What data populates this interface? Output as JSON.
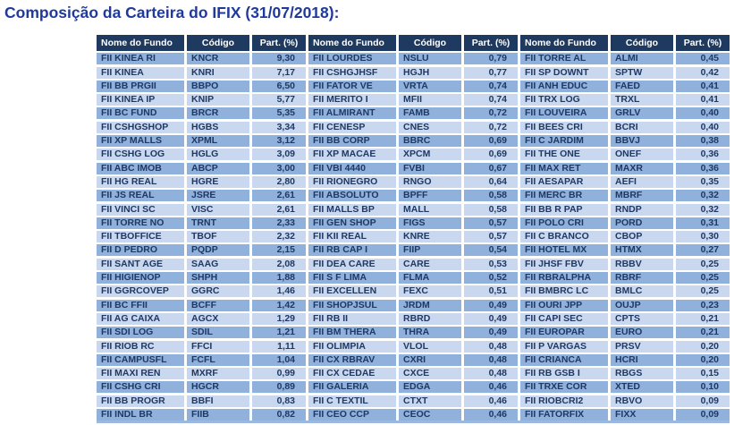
{
  "title": "Composição da Carteira do IFIX (31/07/2018):",
  "colors": {
    "title": "#1F3A9B",
    "header_bg": "#1F3A60",
    "row_dark": "#8FB1DC",
    "row_light": "#C9D8EE",
    "cell_text": "#1F3864"
  },
  "table": {
    "headers": [
      "Nome do Fundo",
      "Código",
      "Part. (%)"
    ],
    "groups": [
      {
        "rows": [
          [
            "FII KINEA RI",
            "KNCR",
            "9,30"
          ],
          [
            "FII KINEA",
            "KNRI",
            "7,17"
          ],
          [
            "FII BB PRGII",
            "BBPO",
            "6,50"
          ],
          [
            "FII KINEA IP",
            "KNIP",
            "5,77"
          ],
          [
            "FII BC FUND",
            "BRCR",
            "5,35"
          ],
          [
            "FII CSHGSHOP",
            "HGBS",
            "3,34"
          ],
          [
            "FII XP MALLS",
            "XPML",
            "3,12"
          ],
          [
            "FII CSHG LOG",
            "HGLG",
            "3,09"
          ],
          [
            "FII ABC IMOB",
            "ABCP",
            "3,00"
          ],
          [
            "FII HG REAL",
            "HGRE",
            "2,80"
          ],
          [
            "FII JS REAL",
            "JSRE",
            "2,61"
          ],
          [
            "FII VINCI SC",
            "VISC",
            "2,61"
          ],
          [
            "FII TORRE NO",
            "TRNT",
            "2,33"
          ],
          [
            "FII TBOFFICE",
            "TBOF",
            "2,32"
          ],
          [
            "FII D PEDRO",
            "PQDP",
            "2,15"
          ],
          [
            "FII SANT AGE",
            "SAAG",
            "2,08"
          ],
          [
            "FII HIGIENOP",
            "SHPH",
            "1,88"
          ],
          [
            "FII GGRCOVEP",
            "GGRC",
            "1,46"
          ],
          [
            "FII BC FFII",
            "BCFF",
            "1,42"
          ],
          [
            "FII AG CAIXA",
            "AGCX",
            "1,29"
          ],
          [
            "FII SDI LOG",
            "SDIL",
            "1,21"
          ],
          [
            "FII RIOB RC",
            "FFCI",
            "1,11"
          ],
          [
            "FII CAMPUSFL",
            "FCFL",
            "1,04"
          ],
          [
            "FII MAXI REN",
            "MXRF",
            "0,99"
          ],
          [
            "FII CSHG CRI",
            "HGCR",
            "0,89"
          ],
          [
            "FII BB PROGR",
            "BBFI",
            "0,83"
          ],
          [
            "FII INDL BR",
            "FIIB",
            "0,82"
          ]
        ]
      },
      {
        "rows": [
          [
            "FII LOURDES",
            "NSLU",
            "0,79"
          ],
          [
            "FII CSHGJHSF",
            "HGJH",
            "0,77"
          ],
          [
            "FII FATOR VE",
            "VRTA",
            "0,74"
          ],
          [
            "FII MERITO I",
            "MFII",
            "0,74"
          ],
          [
            "FII ALMIRANT",
            "FAMB",
            "0,72"
          ],
          [
            "FII CENESP",
            "CNES",
            "0,72"
          ],
          [
            "FII BB CORP",
            "BBRC",
            "0,69"
          ],
          [
            "FII XP MACAE",
            "XPCM",
            "0,69"
          ],
          [
            "FII VBI 4440",
            "FVBI",
            "0,67"
          ],
          [
            "FII RIONEGRO",
            "RNGO",
            "0,64"
          ],
          [
            "FII ABSOLUTO",
            "BPFF",
            "0,58"
          ],
          [
            "FII MALLS BP",
            "MALL",
            "0,58"
          ],
          [
            "FII GEN SHOP",
            "FIGS",
            "0,57"
          ],
          [
            "FII KII REAL",
            "KNRE",
            "0,57"
          ],
          [
            "FII RB CAP I",
            "FIIP",
            "0,54"
          ],
          [
            "FII DEA CARE",
            "CARE",
            "0,53"
          ],
          [
            "FII S F LIMA",
            "FLMA",
            "0,52"
          ],
          [
            "FII EXCELLEN",
            "FEXC",
            "0,51"
          ],
          [
            "FII SHOPJSUL",
            "JRDM",
            "0,49"
          ],
          [
            "FII RB II",
            "RBRD",
            "0,49"
          ],
          [
            "FII BM THERA",
            "THRA",
            "0,49"
          ],
          [
            "FII OLIMPIA",
            "VLOL",
            "0,48"
          ],
          [
            "FII CX RBRAV",
            "CXRI",
            "0,48"
          ],
          [
            "FII CX CEDAE",
            "CXCE",
            "0,48"
          ],
          [
            "FII GALERIA",
            "EDGA",
            "0,46"
          ],
          [
            "FII C TEXTIL",
            "CTXT",
            "0,46"
          ],
          [
            "FII CEO CCP",
            "CEOC",
            "0,46"
          ]
        ]
      },
      {
        "rows": [
          [
            "FII TORRE AL",
            "ALMI",
            "0,45"
          ],
          [
            "FII SP DOWNT",
            "SPTW",
            "0,42"
          ],
          [
            "FII ANH EDUC",
            "FAED",
            "0,41"
          ],
          [
            "FII TRX LOG",
            "TRXL",
            "0,41"
          ],
          [
            "FII LOUVEIRA",
            "GRLV",
            "0,40"
          ],
          [
            "FII BEES CRI",
            "BCRI",
            "0,40"
          ],
          [
            "FII C JARDIM",
            "BBVJ",
            "0,38"
          ],
          [
            "FII THE ONE",
            "ONEF",
            "0,36"
          ],
          [
            "FII MAX RET",
            "MAXR",
            "0,36"
          ],
          [
            "FII AESAPAR",
            "AEFI",
            "0,35"
          ],
          [
            "FII MERC BR",
            "MBRF",
            "0,32"
          ],
          [
            "FII BB R PAP",
            "RNDP",
            "0,32"
          ],
          [
            "FII POLO CRI",
            "PORD",
            "0,31"
          ],
          [
            "FII C BRANCO",
            "CBOP",
            "0,30"
          ],
          [
            "FII HOTEL MX",
            "HTMX",
            "0,27"
          ],
          [
            "FII JHSF FBV",
            "RBBV",
            "0,25"
          ],
          [
            "FII RBRALPHA",
            "RBRF",
            "0,25"
          ],
          [
            "FII BMBRC LC",
            "BMLC",
            "0,25"
          ],
          [
            "FII OURI JPP",
            "OUJP",
            "0,23"
          ],
          [
            "FII CAPI SEC",
            "CPTS",
            "0,21"
          ],
          [
            "FII EUROPAR",
            "EURO",
            "0,21"
          ],
          [
            "FII P VARGAS",
            "PRSV",
            "0,20"
          ],
          [
            "FII CRIANCA",
            "HCRI",
            "0,20"
          ],
          [
            "FII RB GSB I",
            "RBGS",
            "0,15"
          ],
          [
            "FII TRXE COR",
            "XTED",
            "0,10"
          ],
          [
            "FII RIOBCRI2",
            "RBVO",
            "0,09"
          ],
          [
            "FII FATORFIX",
            "FIXX",
            "0,09"
          ]
        ]
      }
    ]
  }
}
